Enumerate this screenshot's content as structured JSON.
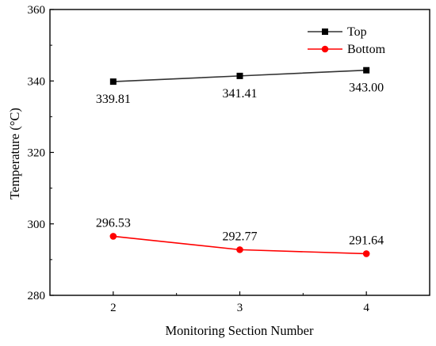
{
  "chart_data": {
    "type": "line",
    "title": "",
    "xlabel": "Monitoring Section Number",
    "ylabel": "Temperature (°C)",
    "x": [
      2,
      3,
      4
    ],
    "x_tick_labels": [
      "2",
      "3",
      "4"
    ],
    "xlim": [
      1.5,
      4.5
    ],
    "ylim": [
      280,
      360
    ],
    "y_ticks": [
      280,
      300,
      320,
      340,
      360
    ],
    "y_tick_labels": [
      "280",
      "300",
      "320",
      "340",
      "360"
    ],
    "grid": false,
    "legend_position": "top-right",
    "series": [
      {
        "name": "Top",
        "values": [
          339.81,
          341.41,
          343.0
        ],
        "labels": [
          "339.81",
          "341.41",
          "343.00"
        ],
        "label_position": "below",
        "color": "#000000",
        "line_color": "#333333",
        "marker": "square"
      },
      {
        "name": "Bottom",
        "values": [
          296.53,
          292.77,
          291.64
        ],
        "labels": [
          "296.53",
          "292.77",
          "291.64"
        ],
        "label_position": "above",
        "color": "#ff0000",
        "line_color": "#ff0000",
        "marker": "circle"
      }
    ]
  }
}
